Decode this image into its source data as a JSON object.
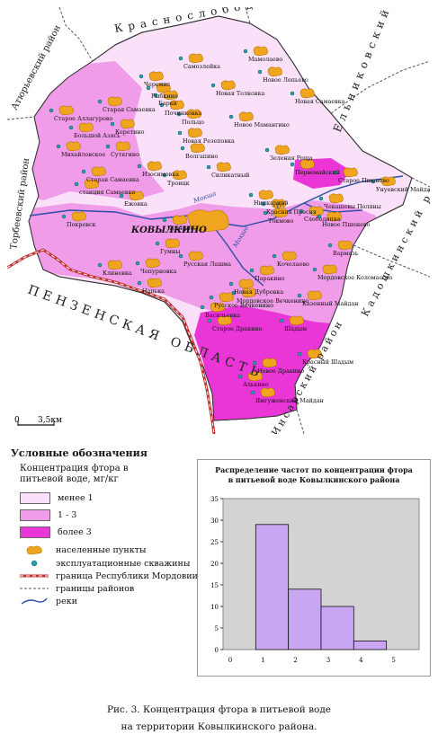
{
  "map": {
    "neighbor_regions": [
      {
        "text": "Краснослободский район",
        "key": "krasnoslobodsky"
      },
      {
        "text": "Атюрьевский район",
        "key": "atyurevsky"
      },
      {
        "text": "Торбеевский район",
        "key": "torbeevsky"
      },
      {
        "text": "Ельниковский район",
        "key": "elnikovsky"
      },
      {
        "text": "Кадошкинский район",
        "key": "kadoshkinsky"
      },
      {
        "text": "Инсарский район",
        "key": "insarsky"
      },
      {
        "text": "ПЕНЗЕНСКАЯ ОБЛАСТЬ",
        "key": "penza"
      }
    ],
    "center": "КОВЫЛКИНО",
    "rivers": [
      "Мокша",
      "Мокша",
      "Иса"
    ],
    "settlements": [
      "Самозлейка",
      "Мамолаево",
      "Новое Лепьево",
      "Черемис",
      "Рыбкино",
      "Барки",
      "Новая Толковка",
      "Старая Самаевка",
      "Новая Самаевка",
      "Старое Аллагурово",
      "Починковка",
      "Польцо",
      "Новое Мамангино",
      "Большой Азясь",
      "Керетино",
      "Новая Резеповка",
      "Михайловское",
      "Сутягино",
      "Волгапино",
      "Зеленая Роща",
      "Первомайский",
      "Изосимовка",
      "Силикатный",
      "Старое Пшенево",
      "Старая Самаевка",
      "Троицк",
      "Унуевский Майдан",
      "станция Самаевка",
      "Ежовка",
      "Нипкарино",
      "Красная Пресня",
      "Чекашевы Поляны",
      "Покровск",
      "Курнино",
      "Токмово",
      "Слободипка",
      "Новое Пшенево",
      "Гумны",
      "Вармазь",
      "Клиновка",
      "Чепурновка",
      "Русская Лашма",
      "Кочелаево",
      "Паракино",
      "Мордовское Коломасово",
      "Напька",
      "Новая Дубровка",
      "Мордовское Вечкенино",
      "Казенный Майдан",
      "Русское Вечкенино",
      "Васильевка",
      "Старое Дракино",
      "Шадым",
      "Красный Шадым",
      "Новое Дракино",
      "Алькино",
      "Ямгуженский Майдан"
    ],
    "scale": {
      "zero": "0",
      "end": "3,5км"
    }
  },
  "legend": {
    "title": "Условные обозначения",
    "subtitle": "Концентрация фтора в питьевой воде, мг/кг",
    "classes": [
      {
        "label": "менее 1",
        "color": "#fae0f8"
      },
      {
        "label": "1 - 3",
        "color": "#f09ce9"
      },
      {
        "label": "более 3",
        "color": "#ea36d6"
      }
    ],
    "symbols": [
      {
        "label": "населенные пункты",
        "icon": "settlement-blob-icon"
      },
      {
        "label": "эксплуатационные скважины",
        "icon": "well-dot-icon"
      },
      {
        "label": "граница Республики Мордовии",
        "icon": "republic-border-icon"
      },
      {
        "label": "границы районов",
        "icon": "district-border-icon"
      },
      {
        "label": "реки",
        "icon": "river-icon"
      }
    ]
  },
  "chart": {
    "title_line1": "Распределение частот по концентрации фтора",
    "title_line2": "в питьевой воде Ковылкинского района"
  },
  "chart_data": {
    "type": "bar",
    "title": "Распределение частот по концентрации фтора в питьевой воде Ковылкинского района",
    "bins": [
      [
        1,
        2
      ],
      [
        2,
        3
      ],
      [
        3,
        4
      ],
      [
        4,
        5
      ]
    ],
    "values": [
      29,
      14,
      10,
      2
    ],
    "second_last_value_note": "",
    "x_ticks": [
      "0",
      "1",
      "2",
      "3",
      "4",
      "5"
    ],
    "y_ticks": [
      "0",
      "5",
      "10",
      "15",
      "20",
      "25",
      "30",
      "35"
    ],
    "xlim": [
      0,
      6
    ],
    "ylim": [
      0,
      35
    ],
    "bar_color": "#c9a6f2",
    "plot_bg": "#d3d3d3",
    "grid": false
  },
  "caption": {
    "line1": "Рис. 3. Концентрация фтора в питьевой воде",
    "line2": "на территории Ковылкинского района."
  }
}
